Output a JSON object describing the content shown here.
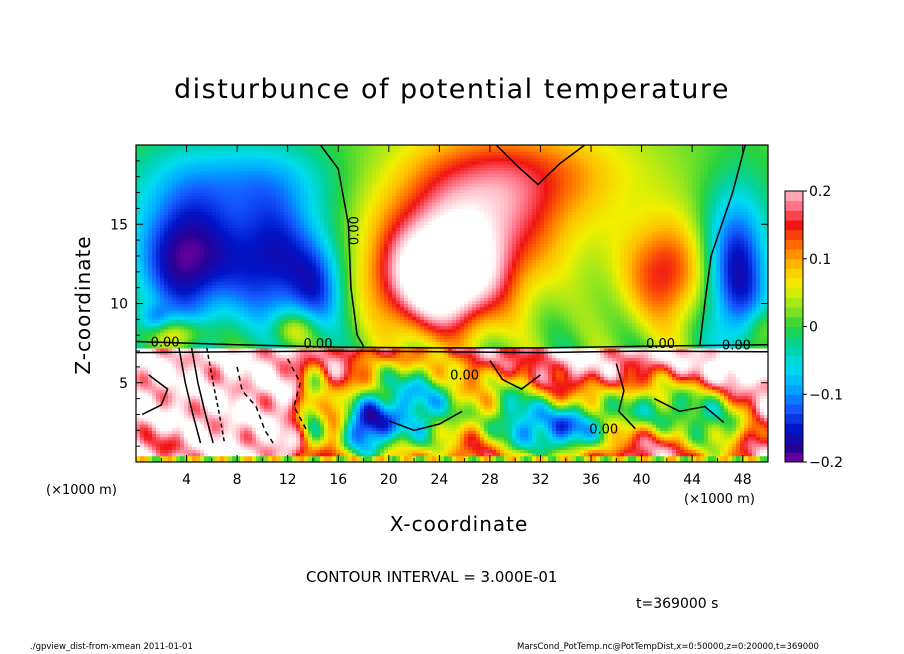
{
  "chart_data": {
    "type": "heatmap",
    "title": "disturbunce of potential temperature",
    "xlabel": "X-coordinate",
    "ylabel": "Z-coordinate",
    "x_unit": "(×1000 m)",
    "y_unit": "(×1000 m)",
    "xlim": [
      0,
      50
    ],
    "ylim": [
      0,
      20
    ],
    "x_ticks": [
      4,
      8,
      12,
      16,
      20,
      24,
      28,
      32,
      36,
      40,
      44,
      48
    ],
    "y_ticks": [
      5,
      10,
      15
    ],
    "colorbar": {
      "range": [
        -0.2,
        0.2
      ],
      "ticks": [
        0.2,
        0.1,
        0,
        -0.1,
        -0.2
      ],
      "tick_labels": [
        "0.2",
        "0.1",
        "0",
        "−0.1",
        "−0.2"
      ]
    },
    "contour_labels": [
      "0.00",
      "0.00",
      "0.00",
      "0.00",
      "0.00",
      "0.00",
      "0.00"
    ],
    "contour_interval_text": "CONTOUR INTERVAL = 3.000E-01",
    "time_text": "t=369000 s",
    "footer_left": "./gpview_dist-from-xmean  2011-01-01",
    "footer_right": "MarsCond_PotTemp.nc@PotTempDist,x=0:50000,z=0:20000,t=369000"
  }
}
